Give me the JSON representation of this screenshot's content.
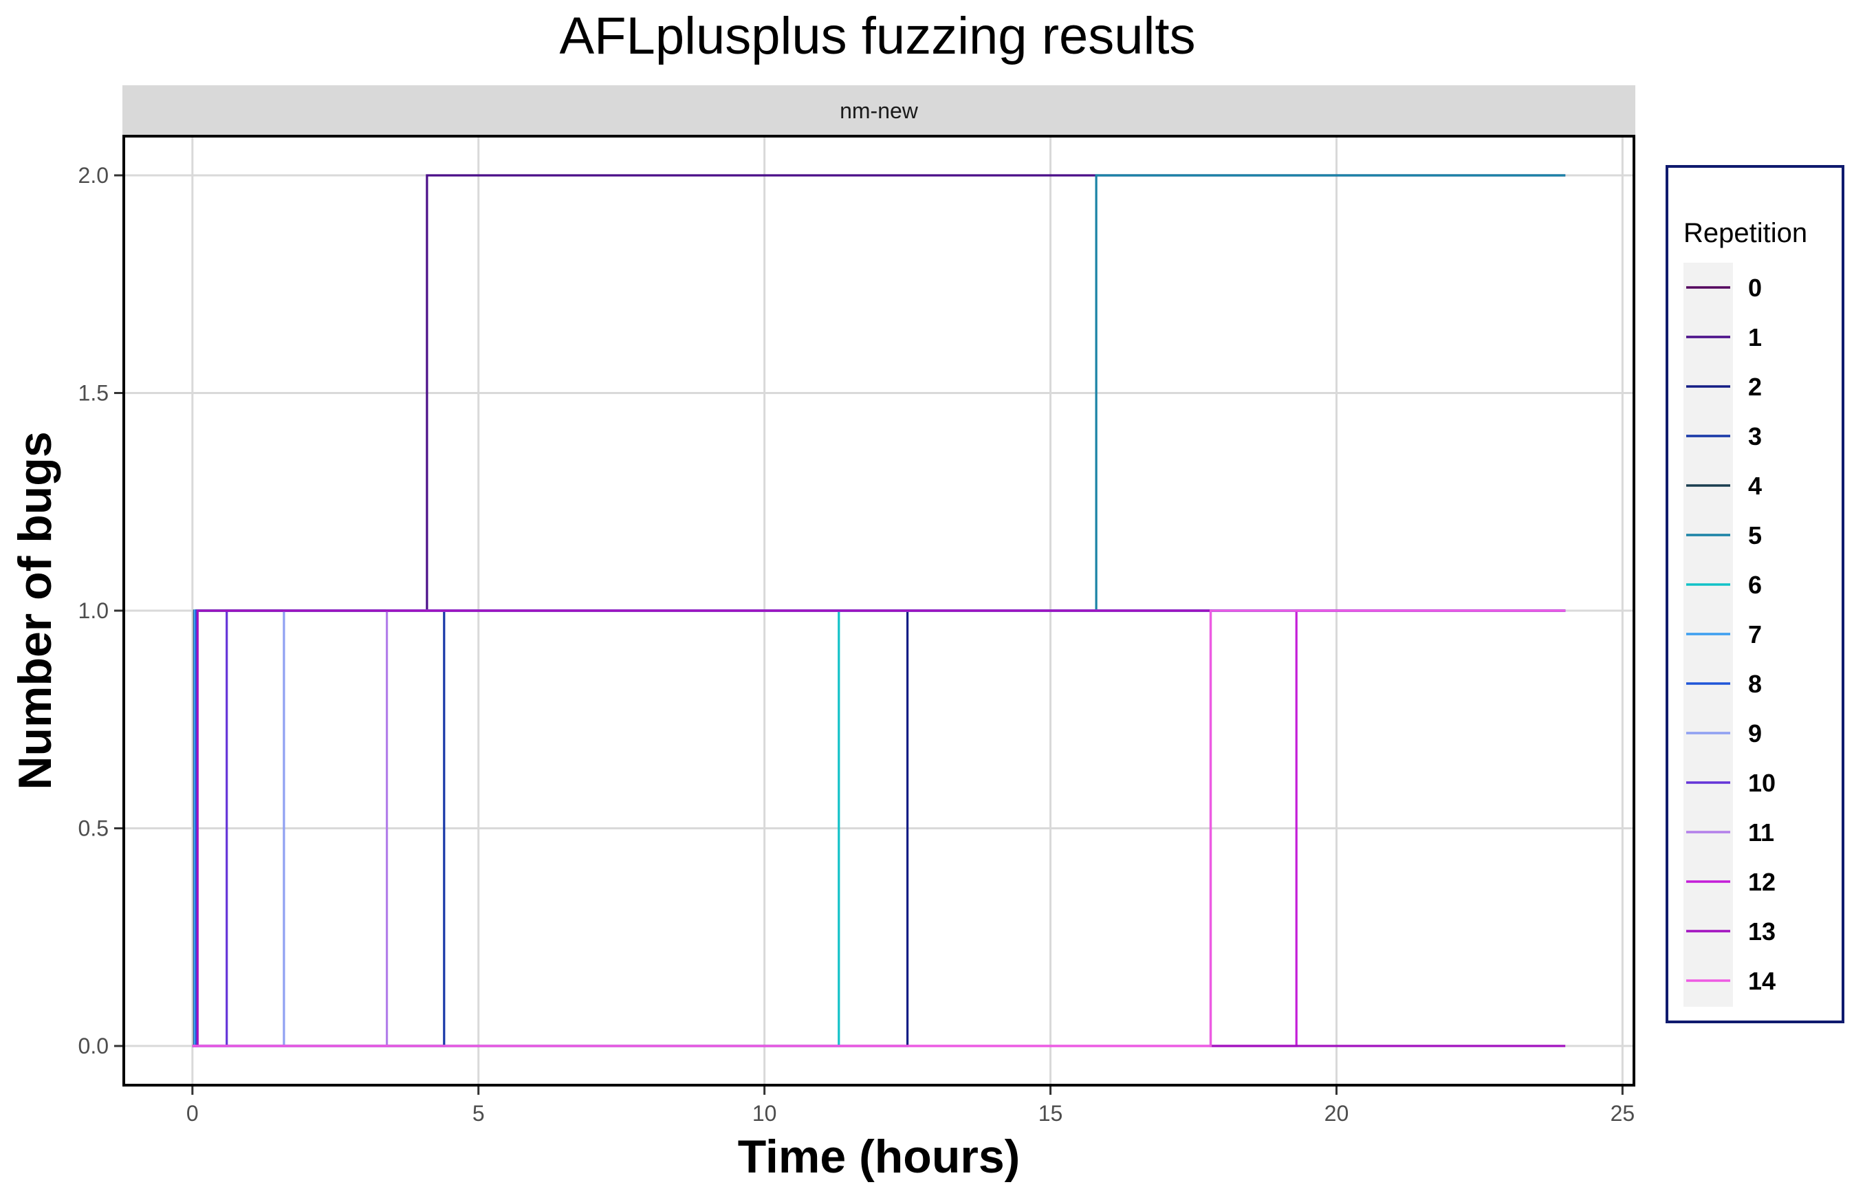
{
  "chart_data": {
    "type": "line",
    "step": "hv",
    "title": "AFLplusplus fuzzing results",
    "panel_label": "nm-new",
    "xlabel": "Time (hours)",
    "ylabel": "Number of bugs",
    "xlim": [
      -1.2,
      25.2
    ],
    "ylim": [
      -0.09,
      2.09
    ],
    "x_ticks": [
      0,
      5,
      10,
      15,
      20,
      25
    ],
    "x_tick_labels": [
      "0",
      "5",
      "10",
      "15",
      "20",
      "25"
    ],
    "y_ticks": [
      0,
      0.5,
      1,
      1.5,
      2
    ],
    "y_tick_labels": [
      "0.0",
      "0.5",
      "1.0",
      "1.5",
      "2.0"
    ],
    "grid": true,
    "legend": {
      "title": "Repetition",
      "position": "right"
    },
    "series": [
      {
        "name": "0",
        "color": "#54045e",
        "x": [
          0,
          0.05,
          24
        ],
        "y": [
          0,
          1,
          1
        ]
      },
      {
        "name": "1",
        "color": "#4b0f89",
        "x": [
          0,
          0.08,
          4.1,
          15.8,
          24
        ],
        "y": [
          0,
          1,
          2,
          2,
          2
        ]
      },
      {
        "name": "2",
        "color": "#141d85",
        "x": [
          0,
          12.5,
          24
        ],
        "y": [
          0,
          1,
          1
        ]
      },
      {
        "name": "3",
        "color": "#1838a8",
        "x": [
          0,
          4.4,
          24
        ],
        "y": [
          0,
          1,
          1
        ]
      },
      {
        "name": "4",
        "color": "#1b3e50",
        "x": [
          0,
          0.03,
          24
        ],
        "y": [
          0,
          1,
          1
        ]
      },
      {
        "name": "5",
        "color": "#1a83a6",
        "x": [
          0,
          0.06,
          15.8,
          24
        ],
        "y": [
          0,
          1,
          2,
          2
        ]
      },
      {
        "name": "6",
        "color": "#12c2c8",
        "x": [
          0,
          11.3,
          24
        ],
        "y": [
          0,
          1,
          1
        ]
      },
      {
        "name": "7",
        "color": "#3c9ef0",
        "x": [
          0,
          0.04,
          24
        ],
        "y": [
          0,
          1,
          1
        ]
      },
      {
        "name": "8",
        "color": "#1f56d8",
        "x": [
          0,
          0.07,
          24
        ],
        "y": [
          0,
          1,
          1
        ]
      },
      {
        "name": "9",
        "color": "#8fa0f2",
        "x": [
          0,
          1.6,
          24
        ],
        "y": [
          0,
          1,
          1
        ]
      },
      {
        "name": "10",
        "color": "#6535d8",
        "x": [
          0,
          0.6,
          24
        ],
        "y": [
          0,
          1,
          1
        ]
      },
      {
        "name": "11",
        "color": "#b37fea",
        "x": [
          0,
          3.4,
          24
        ],
        "y": [
          0,
          1,
          1
        ]
      },
      {
        "name": "12",
        "color": "#c41ed8",
        "x": [
          0,
          19.3,
          24
        ],
        "y": [
          0,
          1,
          1
        ]
      },
      {
        "name": "13",
        "color": "#a212bf",
        "x": [
          0,
          0.09,
          17.8,
          19.3,
          24
        ],
        "y": [
          0,
          1,
          0,
          0,
          0
        ]
      },
      {
        "name": "14",
        "color": "#ee5be3",
        "x": [
          0,
          17.8,
          24
        ],
        "y": [
          0,
          1,
          1
        ]
      }
    ]
  }
}
